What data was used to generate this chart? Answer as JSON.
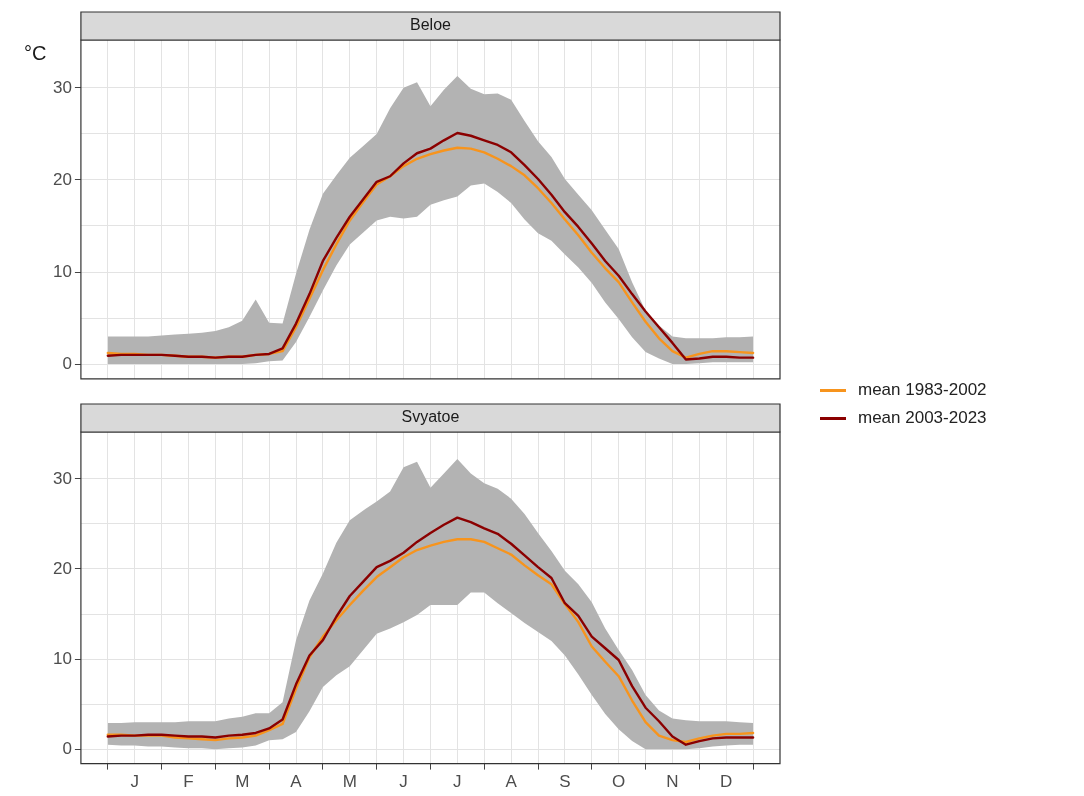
{
  "chart_data": [
    {
      "type": "line",
      "title": "Beloe",
      "ylabel": "°C",
      "tick_labels": "y",
      "grid": true,
      "legend": "right",
      "marker": "none",
      "line_style": "solid",
      "categories": [
        null,
        null,
        null,
        null,
        null,
        null,
        null,
        null,
        null,
        null,
        null,
        null,
        null,
        null,
        null,
        null,
        null,
        null,
        null,
        null,
        null,
        null,
        null,
        null,
        null,
        null,
        null,
        null,
        null,
        null,
        null,
        null,
        null,
        null,
        null,
        null,
        null,
        null,
        null,
        null,
        null,
        null,
        null,
        null,
        null,
        null,
        null,
        null,
        null
      ],
      "ylim": [
        -1.6,
        35.2
      ],
      "yticks": [
        0,
        {
          "value": 5,
          "label": null
        },
        10,
        {
          "value": 15,
          "label": null
        },
        20,
        {
          "value": 25,
          "label": null
        },
        30
      ],
      "series": [
        {
          "name": "mean 1983-2002",
          "color": "#f7941d",
          "values": [
            1.2,
            1.1,
            1.1,
            1.0,
            1.0,
            0.9,
            0.8,
            0.8,
            0.7,
            0.8,
            0.8,
            1.0,
            1.1,
            1.4,
            4.0,
            7.1,
            10.2,
            13.0,
            15.6,
            17.6,
            19.5,
            20.4,
            21.5,
            22.3,
            22.8,
            23.2,
            23.5,
            23.4,
            23.0,
            22.3,
            21.5,
            20.5,
            19.1,
            17.5,
            15.7,
            14.0,
            12.1,
            10.4,
            8.9,
            6.7,
            4.6,
            2.8,
            1.4,
            0.7,
            1.1,
            1.4,
            1.4,
            1.3,
            1.2
          ],
          "upper": [
            3.0,
            3.0,
            3.0,
            3.0,
            3.1,
            3.2,
            3.3,
            3.4,
            3.6,
            4.0,
            4.7,
            7.0,
            4.5,
            4.4,
            9.8,
            14.6,
            18.5,
            20.5,
            22.4,
            23.7,
            25.0,
            27.8,
            30.0,
            30.6,
            28.0,
            29.8,
            31.3,
            29.9,
            29.3,
            29.4,
            28.7,
            26.4,
            24.2,
            22.5,
            20.1,
            18.4,
            16.7,
            14.6,
            12.5,
            8.9,
            5.8,
            4.2,
            3.0,
            2.8,
            2.8,
            2.8,
            2.9,
            2.9,
            3.0
          ],
          "lower": [
            0,
            0,
            0,
            0,
            0,
            0,
            0,
            0,
            0,
            0,
            0,
            0.1,
            0.3,
            0.4,
            2.4,
            5.1,
            8.0,
            10.7,
            13.0,
            14.3,
            15.6,
            16.0,
            15.8,
            16.0,
            17.3,
            17.8,
            18.2,
            19.4,
            19.6,
            18.7,
            17.5,
            15.7,
            14.2,
            13.4,
            11.9,
            10.5,
            8.8,
            6.7,
            4.9,
            2.9,
            1.3,
            0.6,
            0,
            0,
            0.1,
            0.2,
            0.2,
            0.2,
            0.2
          ]
        },
        {
          "name": "mean 2003-2023",
          "color": "#8b0000",
          "values": [
            0.9,
            1.0,
            1.0,
            1.0,
            1.0,
            0.9,
            0.8,
            0.8,
            0.7,
            0.8,
            0.8,
            1.0,
            1.1,
            1.7,
            4.4,
            7.6,
            11.2,
            13.7,
            16.0,
            17.9,
            19.8,
            20.4,
            21.8,
            22.9,
            23.4,
            24.3,
            25.1,
            24.8,
            24.3,
            23.8,
            23.0,
            21.6,
            20.1,
            18.4,
            16.5,
            14.9,
            13.1,
            11.2,
            9.6,
            7.6,
            5.7,
            4.0,
            2.3,
            0.5,
            0.6,
            0.8,
            0.8,
            0.7,
            0.7
          ]
        }
      ]
    },
    {
      "type": "line",
      "title": "Svyatoe",
      "grid": true,
      "marker": "none",
      "line_style": "solid",
      "categories": [
        null,
        null,
        "J",
        null,
        null,
        null,
        "F",
        null,
        null,
        null,
        "M",
        null,
        null,
        null,
        "A",
        null,
        null,
        null,
        "M",
        null,
        null,
        null,
        "J",
        null,
        null,
        null,
        "J",
        null,
        null,
        null,
        "A",
        null,
        null,
        null,
        "S",
        null,
        null,
        null,
        "O",
        null,
        null,
        null,
        "N",
        null,
        null,
        null,
        "D",
        null,
        null
      ],
      "ylim": [
        -1.6,
        35.2
      ],
      "yticks": [
        0,
        {
          "value": 5,
          "label": null
        },
        10,
        {
          "value": 15,
          "label": null
        },
        20,
        {
          "value": 25,
          "label": null
        },
        30
      ],
      "series": [
        {
          "color": "#f7941d",
          "values": [
            1.6,
            1.6,
            1.5,
            1.5,
            1.5,
            1.3,
            1.2,
            1.1,
            1.0,
            1.2,
            1.3,
            1.5,
            2.1,
            2.8,
            6.7,
            10.2,
            12.5,
            14.3,
            16.0,
            17.6,
            19.1,
            20.2,
            21.3,
            22.1,
            22.6,
            23.0,
            23.3,
            23.3,
            23.0,
            22.3,
            21.6,
            20.4,
            19.3,
            18.3,
            16.1,
            14.1,
            11.4,
            9.7,
            8.1,
            5.4,
            3.0,
            1.5,
            1.0,
            0.8,
            1.2,
            1.5,
            1.7,
            1.7,
            1.8
          ],
          "upper": [
            2.9,
            2.9,
            3.0,
            3.0,
            3.0,
            3.0,
            3.1,
            3.1,
            3.1,
            3.4,
            3.6,
            4.0,
            4.0,
            5.2,
            12.1,
            16.5,
            19.5,
            22.9,
            25.4,
            26.5,
            27.5,
            28.6,
            31.3,
            31.9,
            29.0,
            30.6,
            32.2,
            30.6,
            29.5,
            28.9,
            27.8,
            26.1,
            24.0,
            22.0,
            19.8,
            18.3,
            16.3,
            13.4,
            11.0,
            8.8,
            6.0,
            4.3,
            3.4,
            3.2,
            3.1,
            3.1,
            3.1,
            3.0,
            2.9
          ],
          "lower": [
            0.5,
            0.4,
            0.4,
            0.3,
            0.3,
            0.2,
            0.1,
            0.1,
            0,
            0.1,
            0.2,
            0.4,
            1.0,
            1.1,
            1.9,
            4.2,
            6.9,
            8.2,
            9.2,
            11.0,
            12.8,
            13.4,
            14.1,
            14.9,
            16.0,
            16.0,
            16.0,
            17.4,
            17.4,
            16.2,
            15.1,
            14.0,
            13.0,
            12.0,
            10.4,
            8.3,
            6.0,
            3.9,
            2.2,
            0.9,
            0,
            0,
            0,
            0,
            0.1,
            0.3,
            0.4,
            0.5,
            0.5
          ]
        },
        {
          "color": "#8b0000",
          "values": [
            1.4,
            1.5,
            1.5,
            1.6,
            1.6,
            1.5,
            1.4,
            1.4,
            1.3,
            1.5,
            1.6,
            1.8,
            2.3,
            3.3,
            7.2,
            10.4,
            12.1,
            14.7,
            17.0,
            18.6,
            20.2,
            20.9,
            21.8,
            23.0,
            24.0,
            24.9,
            25.7,
            25.2,
            24.5,
            23.9,
            22.8,
            21.5,
            20.2,
            19.0,
            16.2,
            14.8,
            12.5,
            11.2,
            9.9,
            7.0,
            4.6,
            3.1,
            1.4,
            0.5,
            0.9,
            1.2,
            1.3,
            1.3,
            1.3
          ]
        }
      ]
    }
  ]
}
